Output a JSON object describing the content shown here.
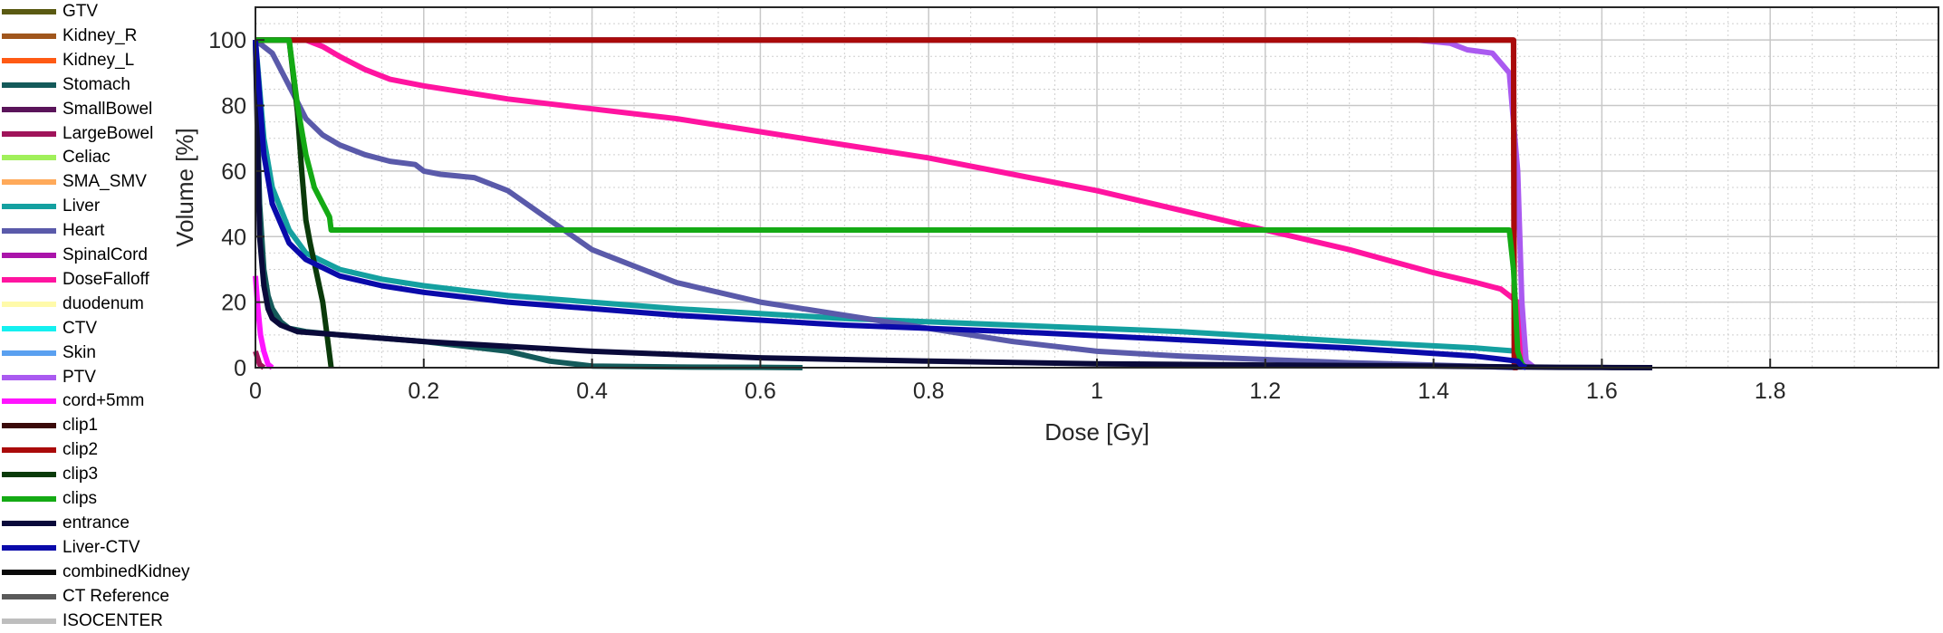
{
  "chart_data": {
    "type": "line",
    "xlabel": "Dose [Gy]",
    "ylabel": "Volume [%]",
    "xlim": [
      0,
      2.0
    ],
    "ylim": [
      0,
      110
    ],
    "x_ticks": [
      "0",
      "0.2",
      "0.4",
      "0.6",
      "0.8",
      "1",
      "1.2",
      "1.4",
      "1.6",
      "1.8"
    ],
    "y_ticks": [
      "0",
      "20",
      "40",
      "60",
      "80",
      "100"
    ],
    "grid": true,
    "minor_grid": true,
    "legend_position": "left",
    "series": [
      {
        "name": "GTV",
        "color": "#5a5a12",
        "x": [],
        "y": []
      },
      {
        "name": "Kidney_R",
        "color": "#a0561c",
        "x": [],
        "y": []
      },
      {
        "name": "Kidney_L",
        "color": "#ff5a14",
        "x": [],
        "y": []
      },
      {
        "name": "Stomach",
        "color": "#145a5a",
        "x": [
          0,
          0.005,
          0.01,
          0.015,
          0.02,
          0.03,
          0.04,
          0.06,
          0.1,
          0.2,
          0.3,
          0.35,
          0.4,
          0.5,
          0.6,
          0.65
        ],
        "y": [
          100,
          50,
          30,
          22,
          18,
          14,
          12,
          11,
          10,
          8,
          5,
          2,
          0.5,
          0.2,
          0.1,
          0
        ]
      },
      {
        "name": "SmallBowel",
        "color": "#5a145a",
        "x": [],
        "y": []
      },
      {
        "name": "LargeBowel",
        "color": "#a0145a",
        "x": [
          0,
          0.005,
          0.01
        ],
        "y": [
          5,
          1,
          0
        ]
      },
      {
        "name": "Celiac",
        "color": "#a0f05a",
        "x": [],
        "y": []
      },
      {
        "name": "SMA_SMV",
        "color": "#ffaa5a",
        "x": [],
        "y": []
      },
      {
        "name": "Liver",
        "color": "#14a0a0",
        "x": [
          0,
          0.01,
          0.02,
          0.04,
          0.06,
          0.1,
          0.15,
          0.2,
          0.3,
          0.5,
          0.7,
          0.9,
          1.1,
          1.3,
          1.45,
          1.5,
          1.505,
          1.51
        ],
        "y": [
          100,
          70,
          55,
          42,
          35,
          30,
          27,
          25,
          22,
          18,
          15,
          13,
          11,
          8,
          6,
          5,
          2,
          0
        ]
      },
      {
        "name": "Heart",
        "color": "#5a5aaa",
        "x": [
          0,
          0.02,
          0.04,
          0.06,
          0.08,
          0.1,
          0.13,
          0.16,
          0.19,
          0.2,
          0.22,
          0.26,
          0.3,
          0.35,
          0.4,
          0.5,
          0.6,
          0.7,
          0.8,
          0.9,
          1.0,
          1.1,
          1.2,
          1.3,
          1.4,
          1.5
        ],
        "y": [
          100,
          96,
          86,
          76,
          71,
          68,
          65,
          63,
          62,
          60,
          59,
          58,
          54,
          45,
          36,
          26,
          20,
          16,
          12,
          8,
          5,
          3.5,
          2.5,
          1.5,
          0.8,
          0
        ]
      },
      {
        "name": "SpinalCord",
        "color": "#aa14aa",
        "x": [],
        "y": []
      },
      {
        "name": "DoseFalloff",
        "color": "#ff14a0",
        "x": [
          0.06,
          0.08,
          0.1,
          0.13,
          0.16,
          0.2,
          0.3,
          0.4,
          0.5,
          0.6,
          0.7,
          0.8,
          0.9,
          1.0,
          1.1,
          1.2,
          1.3,
          1.4,
          1.45,
          1.48,
          1.49,
          1.5,
          1.505,
          1.51
        ],
        "y": [
          100,
          98,
          95,
          91,
          88,
          86,
          82,
          79,
          76,
          72,
          68,
          64,
          59,
          54,
          48,
          42,
          36,
          29,
          26,
          24,
          22,
          20,
          5,
          0
        ]
      },
      {
        "name": "duodenum",
        "color": "#fffaaa",
        "x": [],
        "y": []
      },
      {
        "name": "CTV",
        "color": "#14f0f0",
        "x": [],
        "y": []
      },
      {
        "name": "Skin",
        "color": "#5aa0f0",
        "x": [],
        "y": []
      },
      {
        "name": "PTV",
        "color": "#aa5af0",
        "x": [
          0,
          1.38,
          1.42,
          1.44,
          1.47,
          1.49,
          1.5,
          1.505,
          1.51,
          1.52
        ],
        "y": [
          100,
          100,
          99,
          97,
          96,
          90,
          60,
          20,
          2,
          0
        ]
      },
      {
        "name": "cord+5mm",
        "color": "#ff14ff",
        "x": [
          0,
          0.003,
          0.006,
          0.01,
          0.015,
          0.02
        ],
        "y": [
          28,
          18,
          10,
          5,
          1,
          0
        ]
      },
      {
        "name": "clip1",
        "color": "#3a0a0a",
        "x": [
          0,
          1.495,
          1.496,
          1.5
        ],
        "y": [
          100,
          100,
          0,
          0
        ]
      },
      {
        "name": "clip2",
        "color": "#aa0a0a",
        "x": [
          0,
          1.495,
          1.496,
          1.5
        ],
        "y": [
          100,
          100,
          0,
          0
        ]
      },
      {
        "name": "clip3",
        "color": "#0a3a0a",
        "x": [
          0,
          0.04,
          0.05,
          0.055,
          0.06,
          0.065,
          0.07,
          0.08,
          0.085,
          0.09
        ],
        "y": [
          100,
          100,
          78,
          60,
          45,
          38,
          32,
          20,
          10,
          0
        ]
      },
      {
        "name": "clips",
        "color": "#14aa14",
        "x": [
          0,
          0.04,
          0.05,
          0.06,
          0.065,
          0.07,
          0.08,
          0.088,
          0.09,
          1.49,
          1.495,
          1.5,
          1.505,
          1.51
        ],
        "y": [
          100,
          100,
          80,
          65,
          60,
          55,
          50,
          46,
          42,
          42,
          30,
          5,
          1,
          0
        ]
      },
      {
        "name": "entrance",
        "color": "#0a0a3a",
        "x": [
          0,
          0.005,
          0.01,
          0.015,
          0.02,
          0.03,
          0.05,
          0.1,
          0.2,
          0.4,
          0.6,
          0.8,
          1.0,
          1.2,
          1.4,
          1.5,
          1.55,
          1.6,
          1.66
        ],
        "y": [
          100,
          40,
          25,
          18,
          15,
          13,
          11,
          10,
          8,
          5,
          3,
          2,
          1.2,
          0.8,
          0.5,
          0.2,
          0.1,
          0.05,
          0
        ]
      },
      {
        "name": "Liver-CTV",
        "color": "#0a0aaa",
        "x": [
          0,
          0.01,
          0.02,
          0.04,
          0.06,
          0.1,
          0.15,
          0.2,
          0.3,
          0.5,
          0.7,
          0.9,
          1.1,
          1.3,
          1.45,
          1.5,
          1.505,
          1.51
        ],
        "y": [
          100,
          65,
          50,
          38,
          33,
          28,
          25,
          23,
          20,
          16,
          13,
          11,
          8.5,
          6,
          3.5,
          2,
          0.5,
          0
        ]
      },
      {
        "name": "combinedKidney",
        "color": "#0a0a0a",
        "x": [],
        "y": []
      },
      {
        "name": "CT Reference",
        "color": "#5a5a5a",
        "x": [],
        "y": []
      },
      {
        "name": "ISOCENTER",
        "color": "#bebebe",
        "x": [],
        "y": []
      }
    ]
  }
}
